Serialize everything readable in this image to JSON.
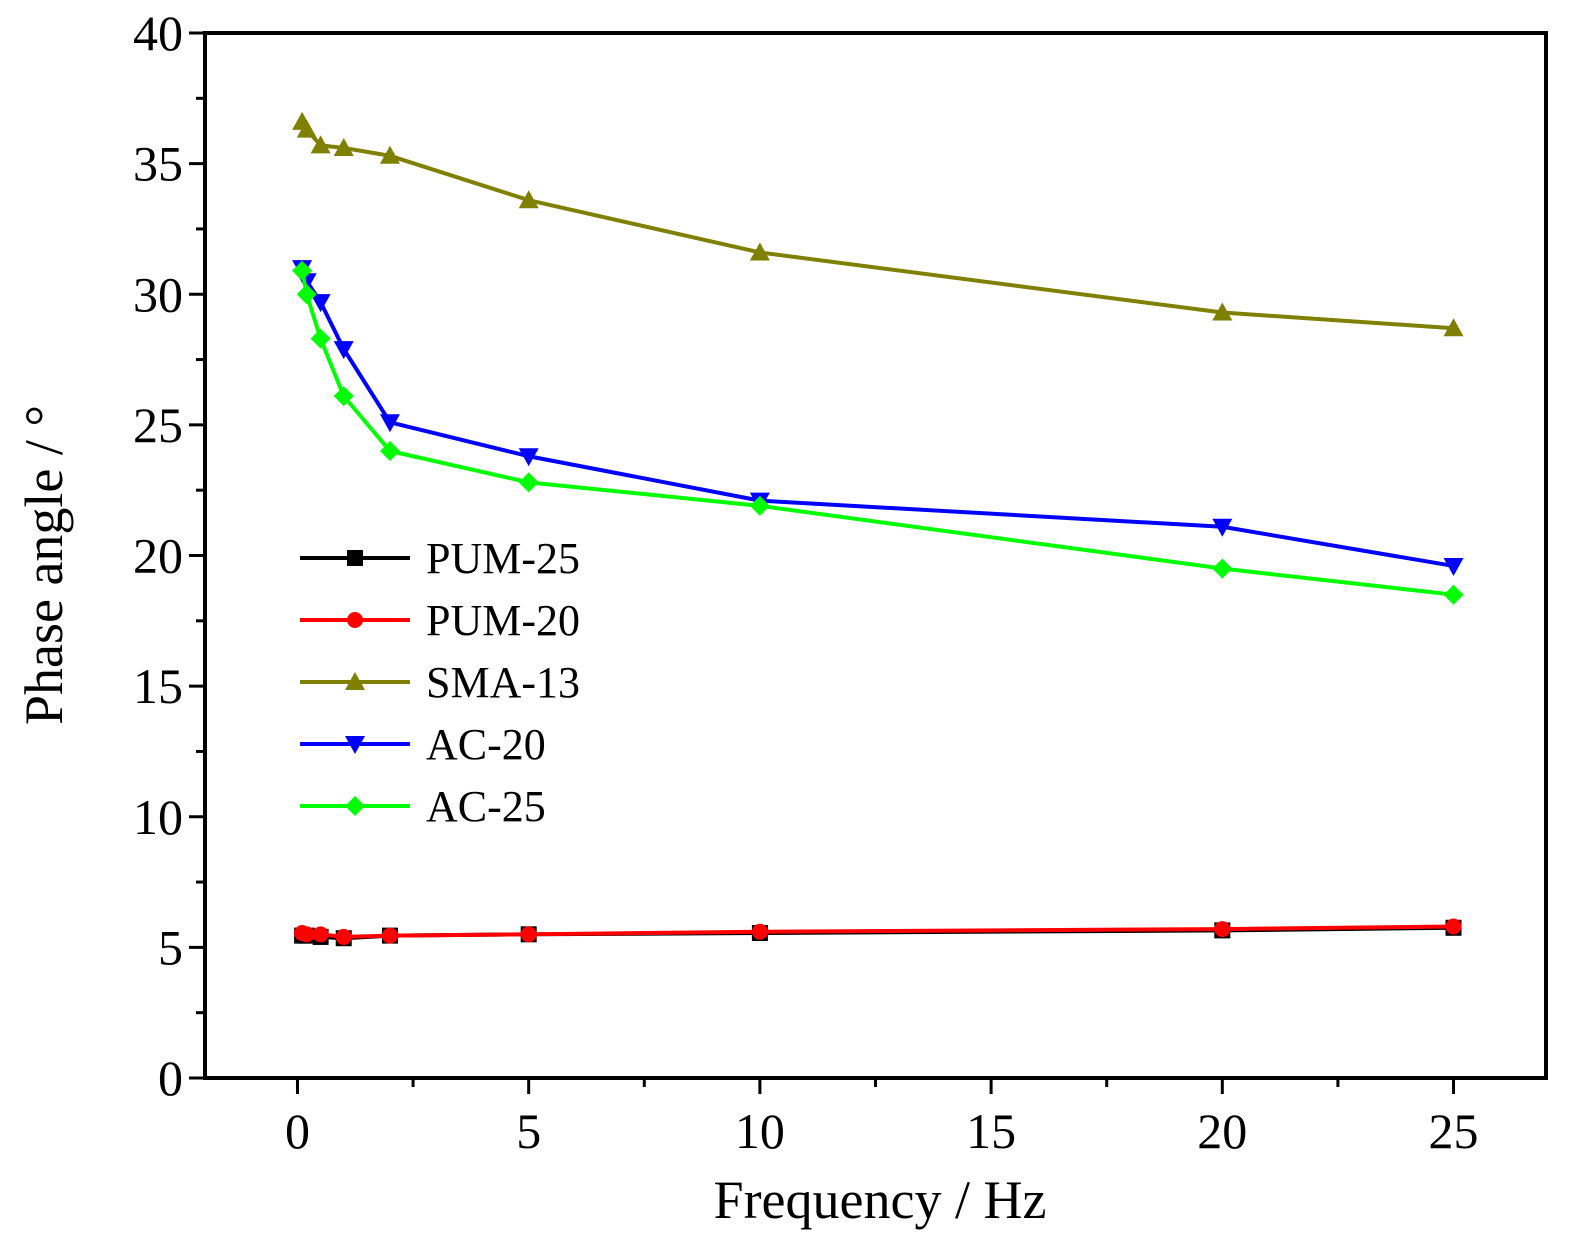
{
  "chart_data": {
    "type": "line",
    "title": "",
    "xlabel": "Frequency / Hz",
    "ylabel": "Phase angle / °",
    "xlim": [
      -2,
      27
    ],
    "ylim": [
      0,
      40
    ],
    "xticks": [
      0,
      5,
      10,
      15,
      20,
      25
    ],
    "yticks": [
      0,
      5,
      10,
      15,
      20,
      25,
      30,
      35,
      40
    ],
    "grid": false,
    "legend_position": "center-left",
    "x": [
      0.1,
      0.2,
      0.5,
      1,
      2,
      5,
      10,
      20,
      25
    ],
    "series": [
      {
        "name": "PUM-25",
        "color": "#000000",
        "marker": "square",
        "values": [
          5.45,
          5.45,
          5.4,
          5.35,
          5.45,
          5.5,
          5.55,
          5.65,
          5.75
        ]
      },
      {
        "name": "PUM-20",
        "color": "#ff0000",
        "marker": "circle",
        "values": [
          5.55,
          5.5,
          5.5,
          5.4,
          5.45,
          5.5,
          5.6,
          5.7,
          5.8
        ]
      },
      {
        "name": "SMA-13",
        "color": "#808000",
        "marker": "triangle-up",
        "values": [
          36.6,
          36.3,
          35.7,
          35.6,
          35.3,
          33.6,
          31.6,
          29.3,
          28.7
        ]
      },
      {
        "name": "AC-20",
        "color": "#0000ff",
        "marker": "triangle-down",
        "values": [
          31.0,
          30.5,
          29.7,
          27.9,
          25.1,
          23.8,
          22.1,
          21.1,
          19.6
        ]
      },
      {
        "name": "AC-25",
        "color": "#00ff00",
        "marker": "diamond",
        "values": [
          30.9,
          30.0,
          28.3,
          26.1,
          24.0,
          22.8,
          21.9,
          19.5,
          18.5
        ]
      }
    ]
  }
}
